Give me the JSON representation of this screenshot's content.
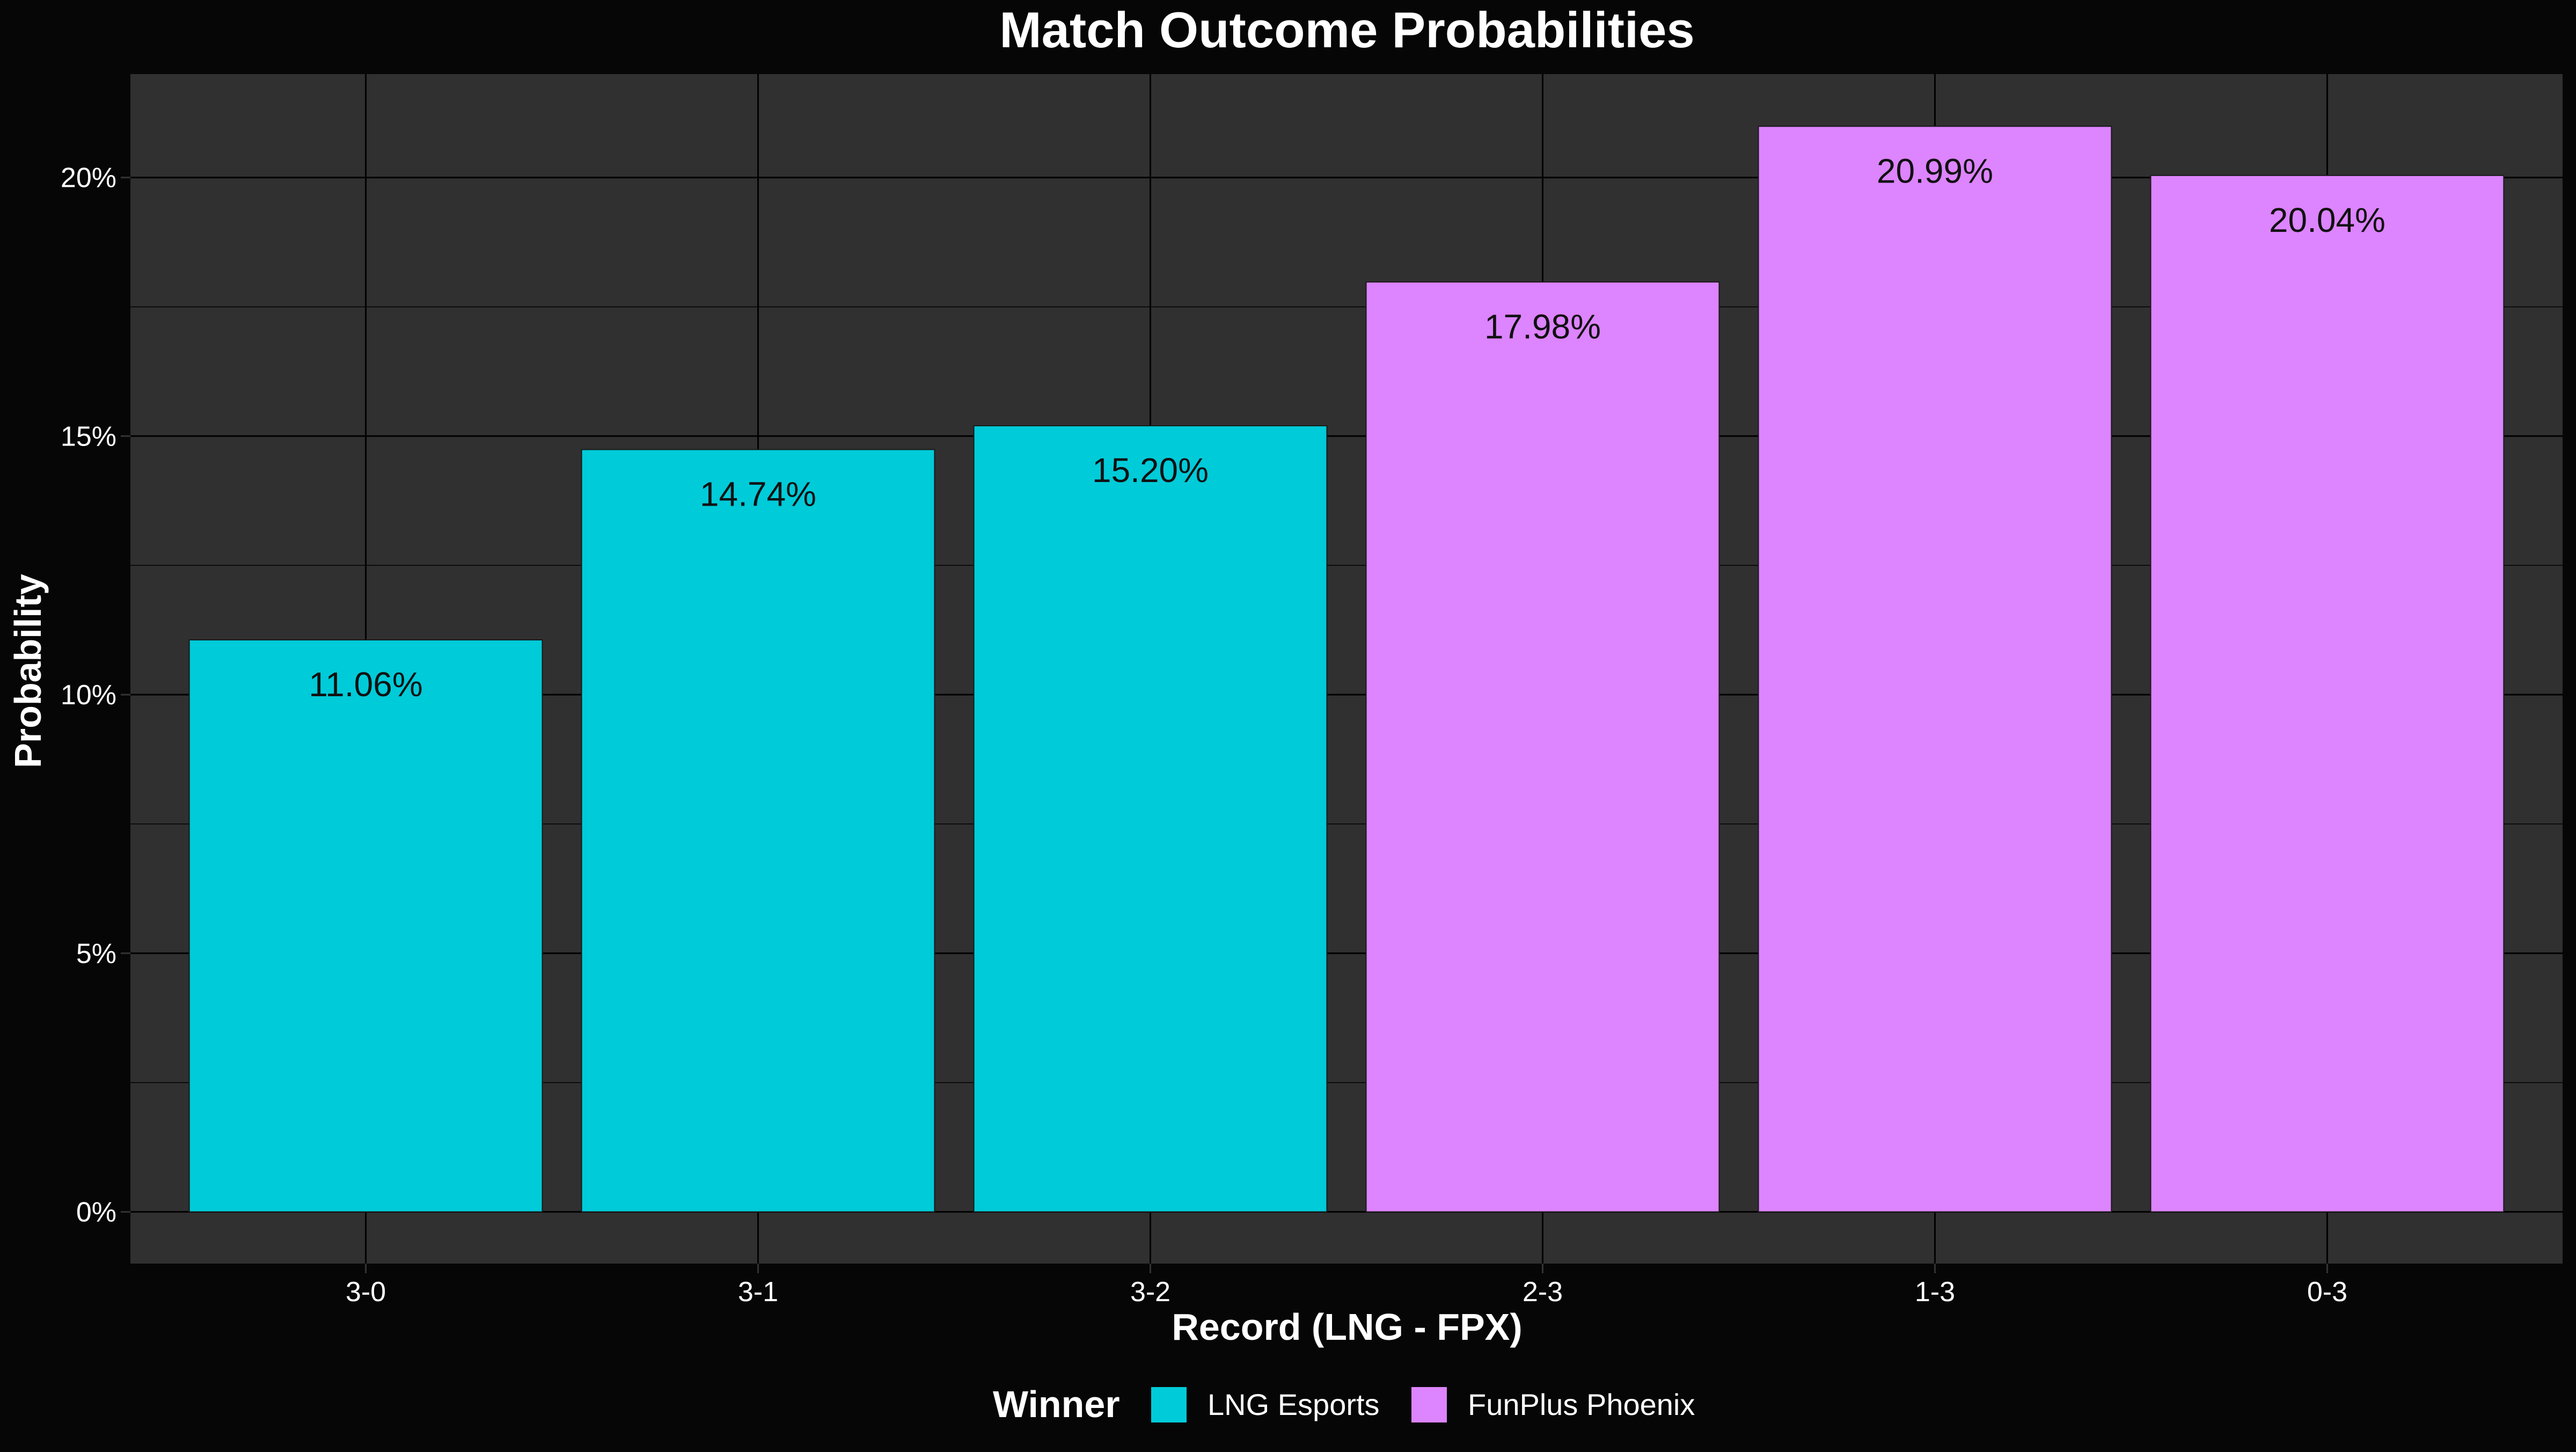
{
  "chart_data": {
    "type": "bar",
    "title": "Match Outcome Probabilities",
    "xlabel": "Record (LNG - FPX)",
    "ylabel": "Probability",
    "categories": [
      "3-0",
      "3-1",
      "3-2",
      "2-3",
      "1-3",
      "0-3"
    ],
    "values": [
      11.06,
      14.74,
      15.2,
      17.98,
      20.99,
      20.04
    ],
    "value_labels": [
      "11.06%",
      "14.74%",
      "15.20%",
      "17.98%",
      "20.99%",
      "20.04%"
    ],
    "winner": [
      "LNG Esports",
      "LNG Esports",
      "LNG Esports",
      "FunPlus Phoenix",
      "FunPlus Phoenix",
      "FunPlus Phoenix"
    ],
    "ylim": [
      -1.0,
      22.0
    ],
    "yticks": [
      0,
      5,
      10,
      15,
      20
    ],
    "ytick_labels": [
      "0%",
      "5%",
      "10%",
      "15%",
      "20%"
    ],
    "grid": true,
    "legend": {
      "title": "Winner",
      "placement": "bottom",
      "entries": [
        {
          "name": "LNG Esports",
          "color": "#00CBD9"
        },
        {
          "name": "FunPlus Phoenix",
          "color": "#DD84FF"
        }
      ]
    },
    "colors": {
      "background": "#060606",
      "panel": "#303030",
      "grid": "#000000",
      "text": "#FFFFFF",
      "label_text": "#111111"
    }
  }
}
